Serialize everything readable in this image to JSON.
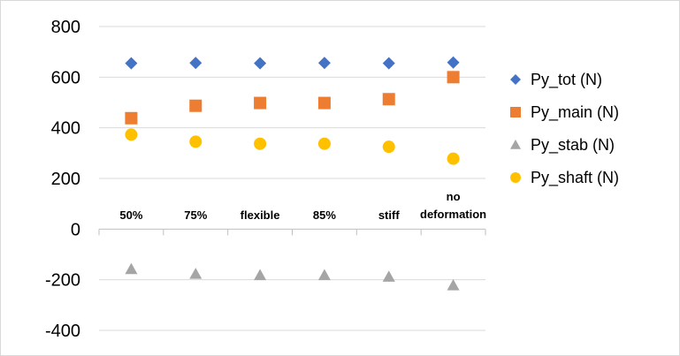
{
  "chart_data": {
    "type": "scatter",
    "title": "",
    "xlabel": "",
    "ylabel": "",
    "categories": [
      [
        "50%"
      ],
      [
        "75%"
      ],
      [
        "flexible"
      ],
      [
        "85%"
      ],
      [
        "stiff"
      ],
      [
        "no",
        "deformation"
      ]
    ],
    "y_ticks": [
      800,
      600,
      400,
      200,
      0,
      -200,
      -400
    ],
    "ylim": [
      -400,
      800
    ],
    "grid": true,
    "legend_position": "right",
    "series": [
      {
        "name": "Py_tot (N)",
        "marker": "diamond",
        "color": "#4472C4",
        "values": [
          655,
          656,
          655,
          656,
          655,
          658
        ]
      },
      {
        "name": "Py_main (N)",
        "marker": "square",
        "color": "#ED7D31",
        "values": [
          438,
          487,
          498,
          498,
          513,
          600
        ]
      },
      {
        "name": "Py_stab (N)",
        "marker": "triangle",
        "color": "#A5A5A5",
        "values": [
          -158,
          -177,
          -182,
          -182,
          -188,
          -222
        ]
      },
      {
        "name": "Py_shaft (N)",
        "marker": "circle",
        "color": "#FFC000",
        "values": [
          373,
          345,
          337,
          337,
          325,
          278
        ]
      }
    ]
  }
}
